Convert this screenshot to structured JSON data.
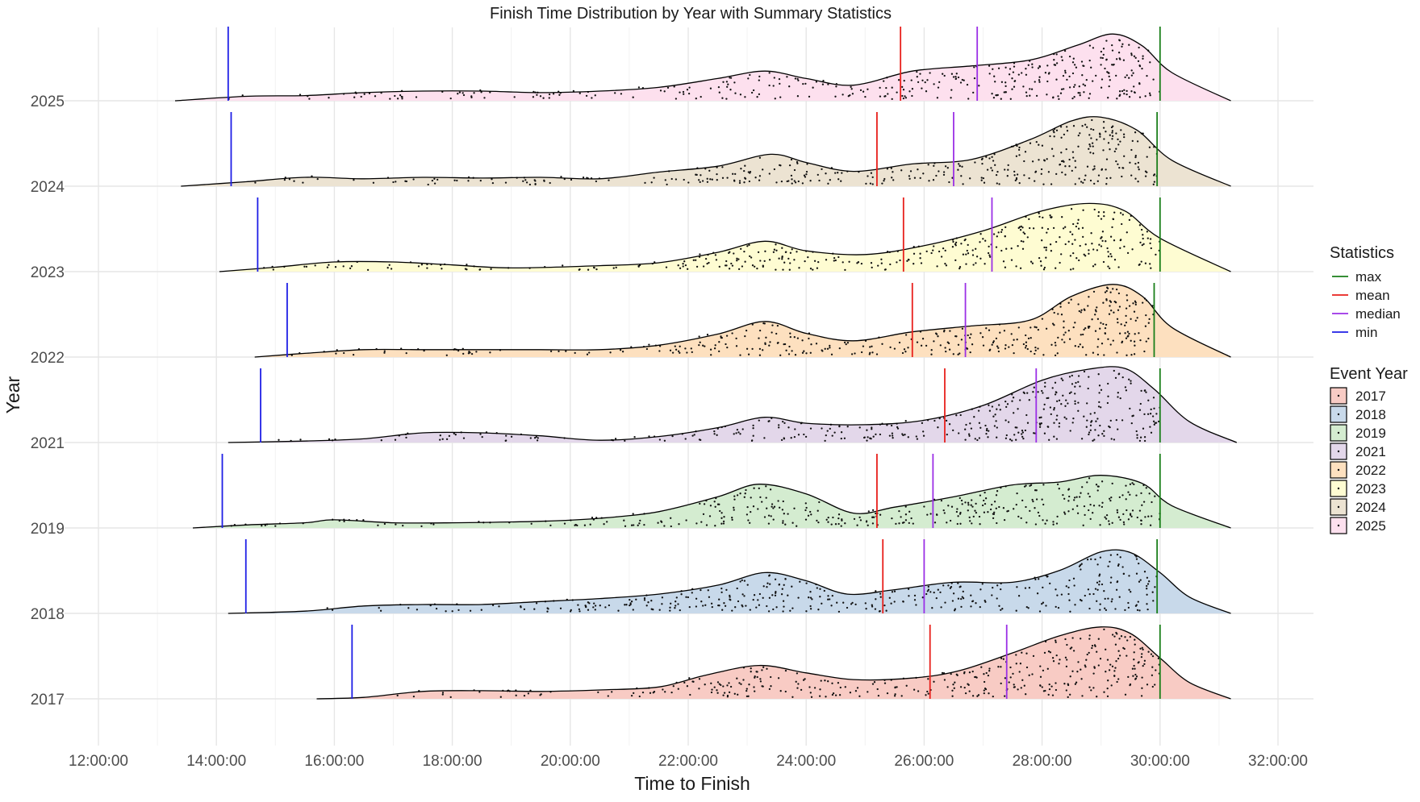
{
  "chart_data": {
    "type": "ridgeline",
    "title": "Finish Time Distribution by Year with Summary Statistics",
    "xlabel": "Time to Finish",
    "ylabel": "Year",
    "x_unit": "hours",
    "xlim": [
      11.0,
      33.2
    ],
    "x_ticks": [
      {
        "value": 12,
        "label": "12:00:00"
      },
      {
        "value": 14,
        "label": "14:00:00"
      },
      {
        "value": 16,
        "label": "16:00:00"
      },
      {
        "value": 18,
        "label": "18:00:00"
      },
      {
        "value": 20,
        "label": "20:00:00"
      },
      {
        "value": 22,
        "label": "22:00:00"
      },
      {
        "value": 24,
        "label": "24:00:00"
      },
      {
        "value": 26,
        "label": "26:00:00"
      },
      {
        "value": 28,
        "label": "28:00:00"
      },
      {
        "value": 30,
        "label": "30:00:00"
      },
      {
        "value": 32,
        "label": "32:00:00"
      }
    ],
    "grid": true,
    "legend": {
      "placement": "right",
      "statistics_title": "Statistics",
      "statistics": [
        {
          "name": "max",
          "color": "#1a7f1a"
        },
        {
          "name": "mean",
          "color": "#e8201c"
        },
        {
          "name": "median",
          "color": "#9b30e6"
        },
        {
          "name": "min",
          "color": "#1f1fe6"
        }
      ],
      "event_year_title": "Event Year",
      "event_years": [
        {
          "label": "2017",
          "color": "#f8cbc4"
        },
        {
          "label": "2018",
          "color": "#c8d9ea"
        },
        {
          "label": "2019",
          "color": "#d4ecd0"
        },
        {
          "label": "2021",
          "color": "#e3d7ea"
        },
        {
          "label": "2022",
          "color": "#fde0bf"
        },
        {
          "label": "2023",
          "color": "#fefcd2"
        },
        {
          "label": "2024",
          "color": "#ece3d2"
        },
        {
          "label": "2025",
          "color": "#fde0ee"
        }
      ]
    },
    "series": [
      {
        "name": "2017",
        "color": "#f8cbc4",
        "min": 16.3,
        "mean": 26.1,
        "median": 27.4,
        "max": 30.0,
        "range": [
          15.7,
          31.2
        ],
        "density": [
          [
            15.7,
            0
          ],
          [
            16.5,
            0.02
          ],
          [
            17.5,
            0.1
          ],
          [
            18.5,
            0.11
          ],
          [
            19.5,
            0.1
          ],
          [
            20.5,
            0.12
          ],
          [
            21.5,
            0.16
          ],
          [
            22.3,
            0.32
          ],
          [
            23.2,
            0.45
          ],
          [
            24.0,
            0.35
          ],
          [
            24.8,
            0.26
          ],
          [
            25.8,
            0.28
          ],
          [
            26.6,
            0.38
          ],
          [
            27.5,
            0.62
          ],
          [
            28.3,
            0.85
          ],
          [
            29.0,
            0.97
          ],
          [
            29.5,
            0.88
          ],
          [
            30.0,
            0.55
          ],
          [
            30.5,
            0.22
          ],
          [
            31.2,
            0
          ]
        ]
      },
      {
        "name": "2018",
        "color": "#c8d9ea",
        "min": 14.5,
        "mean": 25.3,
        "median": 26.0,
        "max": 29.95,
        "range": [
          14.2,
          31.2
        ],
        "density": [
          [
            14.2,
            0
          ],
          [
            15.5,
            0.03
          ],
          [
            16.5,
            0.1
          ],
          [
            17.5,
            0.12
          ],
          [
            18.5,
            0.12
          ],
          [
            19.5,
            0.16
          ],
          [
            20.5,
            0.2
          ],
          [
            21.5,
            0.26
          ],
          [
            22.5,
            0.38
          ],
          [
            23.3,
            0.55
          ],
          [
            24.0,
            0.44
          ],
          [
            24.7,
            0.26
          ],
          [
            25.5,
            0.32
          ],
          [
            26.5,
            0.42
          ],
          [
            27.5,
            0.42
          ],
          [
            28.3,
            0.58
          ],
          [
            29.0,
            0.83
          ],
          [
            29.5,
            0.82
          ],
          [
            30.0,
            0.55
          ],
          [
            30.5,
            0.22
          ],
          [
            31.2,
            0
          ]
        ]
      },
      {
        "name": "2019",
        "color": "#d4ecd0",
        "min": 14.1,
        "mean": 25.2,
        "median": 26.15,
        "max": 30.0,
        "range": [
          13.6,
          31.2
        ],
        "density": [
          [
            13.6,
            0
          ],
          [
            14.5,
            0.04
          ],
          [
            15.5,
            0.07
          ],
          [
            16.0,
            0.11
          ],
          [
            17.0,
            0.07
          ],
          [
            18.0,
            0.07
          ],
          [
            19.5,
            0.09
          ],
          [
            20.5,
            0.13
          ],
          [
            21.5,
            0.22
          ],
          [
            22.5,
            0.42
          ],
          [
            23.2,
            0.59
          ],
          [
            24.0,
            0.46
          ],
          [
            24.8,
            0.2
          ],
          [
            25.5,
            0.28
          ],
          [
            26.5,
            0.42
          ],
          [
            27.5,
            0.58
          ],
          [
            28.3,
            0.62
          ],
          [
            29.0,
            0.71
          ],
          [
            29.7,
            0.6
          ],
          [
            30.2,
            0.3
          ],
          [
            31.2,
            0
          ]
        ]
      },
      {
        "name": "2021",
        "color": "#e3d7ea",
        "min": 14.75,
        "mean": 26.35,
        "median": 27.9,
        "max": 30.0,
        "range": [
          14.2,
          31.3
        ],
        "density": [
          [
            14.2,
            0
          ],
          [
            15.5,
            0.02
          ],
          [
            16.5,
            0.05
          ],
          [
            17.5,
            0.13
          ],
          [
            18.5,
            0.13
          ],
          [
            19.5,
            0.09
          ],
          [
            20.5,
            0.03
          ],
          [
            21.5,
            0.08
          ],
          [
            22.5,
            0.2
          ],
          [
            23.3,
            0.34
          ],
          [
            24.0,
            0.26
          ],
          [
            25.0,
            0.24
          ],
          [
            26.0,
            0.3
          ],
          [
            27.0,
            0.5
          ],
          [
            28.0,
            0.84
          ],
          [
            28.8,
            0.99
          ],
          [
            29.4,
            1.0
          ],
          [
            29.9,
            0.72
          ],
          [
            30.5,
            0.28
          ],
          [
            31.3,
            0
          ]
        ]
      },
      {
        "name": "2022",
        "color": "#fde0bf",
        "min": 15.2,
        "mean": 25.8,
        "median": 26.7,
        "max": 29.9,
        "range": [
          14.65,
          31.2
        ],
        "density": [
          [
            14.65,
            0
          ],
          [
            15.5,
            0.05
          ],
          [
            16.5,
            0.1
          ],
          [
            17.5,
            0.1
          ],
          [
            18.5,
            0.1
          ],
          [
            19.5,
            0.1
          ],
          [
            20.5,
            0.1
          ],
          [
            21.5,
            0.16
          ],
          [
            22.5,
            0.31
          ],
          [
            23.3,
            0.48
          ],
          [
            24.0,
            0.32
          ],
          [
            24.8,
            0.22
          ],
          [
            25.8,
            0.34
          ],
          [
            26.8,
            0.42
          ],
          [
            27.8,
            0.5
          ],
          [
            28.5,
            0.82
          ],
          [
            29.2,
            0.98
          ],
          [
            29.7,
            0.82
          ],
          [
            30.2,
            0.4
          ],
          [
            31.2,
            0
          ]
        ]
      },
      {
        "name": "2023",
        "color": "#fefcd2",
        "min": 14.7,
        "mean": 25.65,
        "median": 27.15,
        "max": 30.0,
        "range": [
          14.05,
          31.2
        ],
        "density": [
          [
            14.05,
            0
          ],
          [
            15.0,
            0.06
          ],
          [
            16.0,
            0.13
          ],
          [
            17.0,
            0.13
          ],
          [
            18.0,
            0.09
          ],
          [
            19.0,
            0.05
          ],
          [
            20.5,
            0.08
          ],
          [
            21.5,
            0.12
          ],
          [
            22.5,
            0.26
          ],
          [
            23.3,
            0.41
          ],
          [
            24.0,
            0.28
          ],
          [
            25.0,
            0.23
          ],
          [
            26.0,
            0.35
          ],
          [
            27.0,
            0.55
          ],
          [
            28.0,
            0.82
          ],
          [
            28.8,
            0.92
          ],
          [
            29.4,
            0.82
          ],
          [
            30.0,
            0.45
          ],
          [
            31.2,
            0
          ]
        ]
      },
      {
        "name": "2024",
        "color": "#ece3d2",
        "min": 14.25,
        "mean": 25.2,
        "median": 26.5,
        "max": 29.95,
        "range": [
          13.4,
          31.2
        ],
        "density": [
          [
            13.4,
            0
          ],
          [
            14.5,
            0.06
          ],
          [
            15.5,
            0.12
          ],
          [
            16.5,
            0.1
          ],
          [
            17.5,
            0.12
          ],
          [
            18.5,
            0.11
          ],
          [
            19.5,
            0.12
          ],
          [
            20.5,
            0.1
          ],
          [
            21.5,
            0.19
          ],
          [
            22.5,
            0.27
          ],
          [
            23.4,
            0.43
          ],
          [
            24.0,
            0.32
          ],
          [
            24.8,
            0.2
          ],
          [
            25.8,
            0.3
          ],
          [
            26.8,
            0.36
          ],
          [
            27.8,
            0.63
          ],
          [
            28.5,
            0.88
          ],
          [
            29.0,
            0.93
          ],
          [
            29.6,
            0.76
          ],
          [
            30.2,
            0.35
          ],
          [
            31.2,
            0
          ]
        ]
      },
      {
        "name": "2025",
        "color": "#fde0ee",
        "min": 14.2,
        "mean": 25.6,
        "median": 26.9,
        "max": 30.0,
        "range": [
          13.3,
          31.2
        ],
        "density": [
          [
            13.3,
            0
          ],
          [
            14.5,
            0.06
          ],
          [
            15.5,
            0.07
          ],
          [
            16.5,
            0.11
          ],
          [
            17.5,
            0.13
          ],
          [
            18.5,
            0.13
          ],
          [
            19.5,
            0.11
          ],
          [
            20.5,
            0.13
          ],
          [
            21.5,
            0.18
          ],
          [
            22.5,
            0.3
          ],
          [
            23.3,
            0.4
          ],
          [
            24.0,
            0.3
          ],
          [
            24.8,
            0.21
          ],
          [
            25.8,
            0.4
          ],
          [
            26.8,
            0.47
          ],
          [
            27.8,
            0.55
          ],
          [
            28.6,
            0.75
          ],
          [
            29.2,
            0.9
          ],
          [
            29.7,
            0.74
          ],
          [
            30.2,
            0.38
          ],
          [
            31.2,
            0
          ]
        ]
      }
    ]
  }
}
